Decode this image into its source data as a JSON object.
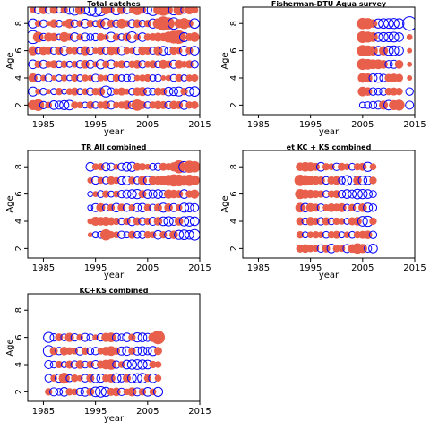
{
  "colors": {
    "positive": "#E8604C",
    "negative": "#0000FF",
    "frame": "#000000"
  },
  "chart_data": [
    {
      "type": "scatter",
      "title": "Total catches",
      "xlabel": "year",
      "ylabel": "Age",
      "xlim": [
        1982,
        2015
      ],
      "ylim": [
        1.3,
        9.2
      ],
      "xticks": [
        1985,
        1995,
        2005,
        2015
      ],
      "yticks": [
        2,
        4,
        6,
        8
      ],
      "ages": [
        2,
        3,
        4,
        5,
        6,
        7,
        8,
        9
      ],
      "year_range": [
        1983,
        2014
      ],
      "max_residual": 2.5,
      "residuals": {
        "9": [
          0.4,
          -0.6,
          0.8,
          -0.5,
          0.7,
          -0.4,
          0.6,
          -0.8,
          -1.2,
          1.0,
          -0.7,
          -1.4,
          -1.8,
          -1.5,
          0.9,
          0.5,
          -1.1,
          0.8,
          -0.6,
          0.4,
          1.2,
          0.6,
          -0.7,
          -1.4,
          1.0,
          1.5,
          0.8,
          -1.1,
          1.3,
          -0.5,
          0.9,
          0.6
        ],
        "8": [
          -0.9,
          0.5,
          -0.6,
          0.3,
          0.8,
          -0.5,
          0.4,
          1.0,
          -0.6,
          0.5,
          -0.8,
          0.6,
          -0.4,
          0.9,
          -1.1,
          0.7,
          -0.6,
          1.0,
          0.5,
          -0.7,
          0.8,
          -0.5,
          0.6,
          -0.9,
          1.2,
          2.2,
          1.6,
          -1.4,
          0.9,
          1.3,
          0.7,
          -1.0
        ],
        "7": [
          -1.8,
          1.2,
          -0.6,
          0.9,
          0.8,
          -0.4,
          1.1,
          0.6,
          -0.8,
          0.5,
          -0.7,
          -0.5,
          -0.6,
          0.7,
          0.4,
          -1.0,
          0.6,
          -0.5,
          0.8,
          -1.2,
          0.5,
          -0.8,
          0.6,
          0.7,
          0.9,
          0.8,
          1.3,
          1.8,
          2.0,
          -0.9,
          0.7,
          1.0
        ],
        "6": [
          0.9,
          -0.4,
          0.8,
          0.6,
          -0.5,
          0.7,
          -0.8,
          0.5,
          0.6,
          -0.4,
          0.9,
          -0.6,
          0.4,
          0.7,
          -0.5,
          0.8,
          0.6,
          -0.7,
          0.5,
          0.4,
          -0.6,
          0.8,
          0.7,
          -0.5,
          0.9,
          -0.8,
          -0.6,
          0.7,
          0.5,
          -0.9,
          0.6,
          -0.8
        ],
        "5": [
          -0.8,
          0.6,
          -0.7,
          0.5,
          0.7,
          -0.5,
          0.6,
          -0.4,
          0.5,
          -0.6,
          0.8,
          -0.7,
          0.4,
          -0.9,
          0.6,
          -0.8,
          0.5,
          0.7,
          -0.4,
          0.6,
          0.8,
          -0.6,
          0.5,
          0.7,
          -0.5,
          0.9,
          0.6,
          -0.7,
          0.8,
          0.5,
          0.7,
          -0.6
        ],
        "4": [
          0.9,
          -0.5,
          0.4,
          -0.6,
          0.3,
          -0.4,
          0.5,
          -0.3,
          0.6,
          -0.4,
          0.5,
          0.4,
          -0.6,
          0.5,
          0.4,
          -0.5,
          0.6,
          -0.4,
          -0.5,
          -0.6,
          0.4,
          0.5,
          0.6,
          -0.4,
          -0.5,
          0.3,
          0.4,
          -0.5,
          0.6,
          -0.4,
          0.5,
          0.6
        ],
        "3": [
          -0.9,
          0.4,
          -0.5,
          0.3,
          -0.4,
          0.6,
          -0.3,
          0.5,
          0.7,
          -0.4,
          0.5,
          -0.6,
          0.6,
          0.8,
          -1.3,
          -0.6,
          0.5,
          0.7,
          0.4,
          -0.5,
          0.8,
          0.9,
          -0.6,
          -0.5,
          0.7,
          0.6,
          -0.8,
          -0.7,
          -0.9,
          0.6,
          -0.8,
          -1.0
        ],
        "2": [
          1.1,
          1.5,
          -0.6,
          0.5,
          -0.8,
          -0.7,
          -0.9,
          -1.0,
          0.6,
          0.5,
          -0.4,
          0.7,
          -0.5,
          0.6,
          0.8,
          -0.7,
          0.5,
          0.6,
          0.9,
          -0.6,
          1.4,
          0.7,
          -0.5,
          0.6,
          0.8,
          0.7,
          -0.6,
          0.8,
          0.7,
          -0.8,
          0.6,
          0.7
        ]
      }
    },
    {
      "type": "scatter",
      "title": "Fisherman-DTU Aqua survey",
      "xlabel": "year",
      "ylabel": "Age",
      "xlim": [
        1982,
        2015
      ],
      "ylim": [
        1.3,
        9.2
      ],
      "xticks": [
        1985,
        1995,
        2005,
        2015
      ],
      "yticks": [
        2,
        4,
        6,
        8
      ],
      "ages": [
        2,
        3,
        4,
        5,
        6,
        7,
        8
      ],
      "year_range": [
        2005,
        2014
      ],
      "missing_years": [
        2013
      ],
      "max_residual": 2.5,
      "residuals": {
        "8": [
          1.4,
          1.3,
          0.8,
          -0.9,
          -1.0,
          -1.0,
          -1.1,
          -1.0,
          0.0,
          -2.0
        ],
        "7": [
          1.5,
          1.3,
          1.0,
          -0.8,
          -0.9,
          -0.9,
          -1.0,
          -0.8,
          0.0,
          0.4
        ],
        "6": [
          1.4,
          1.2,
          1.0,
          -0.8,
          0.9,
          -0.9,
          -1.0,
          -0.8,
          0.0,
          0.3
        ],
        "5": [
          1.4,
          1.2,
          1.0,
          1.0,
          0.8,
          -0.6,
          -0.7,
          0.8,
          0.0,
          0.3
        ],
        "4": [
          1.0,
          0.9,
          -0.7,
          -0.8,
          -0.6,
          0.7,
          0.8,
          0.7,
          0.0,
          0.3
        ],
        "3": [
          1.0,
          0.8,
          -0.6,
          -0.5,
          -0.6,
          0.6,
          0.7,
          0.6,
          0.0,
          -0.6
        ],
        "2": [
          -0.4,
          -0.5,
          -0.6,
          -0.7,
          0.9,
          -1.0,
          1.1,
          1.3,
          0.0,
          -0.7
        ]
      }
    },
    {
      "type": "scatter",
      "title": "TR All combined",
      "xlabel": "year",
      "ylabel": "Age",
      "xlim": [
        1982,
        2015
      ],
      "ylim": [
        1.3,
        9.2
      ],
      "xticks": [
        1985,
        1995,
        2005,
        2015
      ],
      "yticks": [
        2,
        4,
        6,
        8
      ],
      "ages": [
        3,
        4,
        5,
        6,
        7,
        8
      ],
      "year_range": [
        1994,
        2014
      ],
      "max_residual": 2.5,
      "residuals": {
        "8": [
          -0.8,
          0.5,
          0.6,
          -0.7,
          -0.6,
          0.4,
          -0.6,
          -0.8,
          -0.9,
          0.7,
          0.6,
          0.4,
          -0.5,
          -0.6,
          0.7,
          0.6,
          0.9,
          1.8,
          -1.2,
          1.6,
          1.4
        ],
        "7": [
          0.4,
          -0.6,
          0.5,
          -0.5,
          0.7,
          0.5,
          -0.6,
          -0.8,
          0.6,
          -0.5,
          0.9,
          -0.7,
          0.8,
          0.8,
          1.0,
          1.3,
          1.6,
          1.5,
          1.2,
          1.4,
          1.1
        ],
        "6": [
          -0.3,
          0.4,
          -0.5,
          0.6,
          -0.4,
          0.5,
          -0.6,
          -0.7,
          -0.8,
          -0.9,
          0.7,
          -0.8,
          -0.7,
          -0.8,
          -0.6,
          0.9,
          0.8,
          0.7,
          -0.8,
          0.6,
          0.9
        ],
        "5": [
          -0.3,
          -0.7,
          0.9,
          -0.5,
          0.6,
          -0.8,
          0.7,
          -0.6,
          0.5,
          -0.7,
          -0.8,
          0.6,
          -0.5,
          0.7,
          -0.9,
          0.8,
          -0.7,
          0.5,
          -0.9,
          -0.8,
          -0.7
        ],
        "4": [
          0.4,
          0.9,
          0.8,
          0.9,
          0.7,
          0.6,
          -0.5,
          0.6,
          -0.8,
          0.7,
          -0.6,
          0.6,
          -0.7,
          0.8,
          -0.8,
          -0.9,
          -0.7,
          0.8,
          -0.9,
          -1.0,
          -0.8
        ],
        "3": [
          0.3,
          -0.4,
          -0.5,
          1.4,
          0.6,
          0.5,
          -0.6,
          -0.4,
          0.7,
          -0.5,
          -0.6,
          0.6,
          0.5,
          -0.8,
          0.6,
          -0.7,
          0.8,
          -0.9,
          -1.0,
          -0.8,
          -1.2
        ]
      }
    },
    {
      "type": "scatter",
      "title": "et KC + KS combined",
      "xlabel": "year",
      "ylabel": "Age",
      "xlim": [
        1982,
        2015
      ],
      "ylim": [
        1.3,
        9.2
      ],
      "xticks": [
        1985,
        1995,
        2005,
        2015
      ],
      "yticks": [
        2,
        4,
        6,
        8
      ],
      "ages": [
        2,
        3,
        4,
        5,
        6,
        7,
        8
      ],
      "year_range": [
        1993,
        2007
      ],
      "max_residual": 2.5,
      "residuals": {
        "8": [
          0.8,
          1.0,
          0.9,
          0.7,
          -0.8,
          0.6,
          0.5,
          -0.6,
          0.7,
          0.5,
          -0.5,
          0.6,
          0.7,
          -0.9,
          0.5
        ],
        "7": [
          1.4,
          1.2,
          0.9,
          0.8,
          0.7,
          -0.6,
          0.7,
          0.8,
          -0.5,
          -1.0,
          -0.9,
          0.8,
          -0.8,
          -0.7,
          0.6
        ],
        "6": [
          1.1,
          0.9,
          0.8,
          0.7,
          0.6,
          -0.5,
          0.6,
          0.7,
          -0.6,
          -0.8,
          -0.7,
          -1.0,
          -0.9,
          -0.8,
          -0.5
        ],
        "5": [
          1.0,
          -0.8,
          0.9,
          0.7,
          -0.6,
          0.5,
          0.8,
          0.7,
          0.9,
          -0.5,
          0.6,
          -0.7,
          0.8,
          -0.9,
          -0.6
        ],
        "4": [
          0.7,
          -0.5,
          0.8,
          0.6,
          -0.6,
          0.7,
          -0.5,
          0.6,
          0.5,
          -0.4,
          0.7,
          0.8,
          -1.0,
          -1.1,
          0.6
        ],
        "3": [
          0.6,
          -0.4,
          0.5,
          0.6,
          0.5,
          -0.5,
          0.6,
          0.7,
          -0.4,
          0.5,
          -0.5,
          0.6,
          0.7,
          0.8,
          -0.6
        ],
        "2": [
          0.7,
          0.8,
          0.6,
          0.5,
          -0.6,
          0.7,
          -0.8,
          0.6,
          0.5,
          -0.7,
          0.8,
          1.2,
          0.9,
          -0.6,
          -0.8
        ]
      }
    },
    {
      "type": "scatter",
      "title": "KC+KS combined",
      "xlabel": "year",
      "ylabel": "Age",
      "xlim": [
        1982,
        2015
      ],
      "ylim": [
        1.3,
        9.2
      ],
      "xticks": [
        1985,
        1995,
        2005,
        2015
      ],
      "yticks": [
        2,
        4,
        6,
        8
      ],
      "ages": [
        2,
        3,
        4,
        5,
        6
      ],
      "year_range": [
        1986,
        2007
      ],
      "max_residual": 2.5,
      "residuals": {
        "6": [
          -1.1,
          -0.6,
          0.7,
          -0.5,
          0.9,
          -0.6,
          0.5,
          -0.7,
          -0.5,
          0.4,
          -0.6,
          0.9,
          1.0,
          -0.7,
          -0.5,
          -0.8,
          0.6,
          -0.9,
          -0.8,
          -0.7,
          0.9,
          2.0
        ],
        "5": [
          -1.2,
          0.7,
          -0.6,
          0.8,
          0.6,
          0.5,
          -0.7,
          0.6,
          -0.5,
          -0.6,
          0.5,
          0.8,
          1.0,
          0.6,
          -0.7,
          -0.8,
          0.6,
          -0.7,
          -0.8,
          -0.6,
          -0.9,
          0.7
        ],
        "4": [
          -0.7,
          -0.5,
          0.6,
          -0.4,
          0.7,
          -0.6,
          0.8,
          -0.5,
          0.6,
          -0.7,
          0.7,
          1.0,
          1.2,
          -0.6,
          0.5,
          -0.8,
          -0.9,
          -1.0,
          -0.9,
          -0.8,
          0.6,
          0.5
        ],
        "3": [
          -0.6,
          0.5,
          -0.7,
          1.3,
          -0.5,
          0.6,
          0.4,
          -0.6,
          0.7,
          -0.8,
          -0.7,
          0.6,
          0.8,
          -0.9,
          -0.6,
          0.7,
          -0.8,
          -0.9,
          -1.0,
          0.6,
          -0.8,
          0.5
        ],
        "2": [
          0.6,
          -0.7,
          -0.5,
          -0.8,
          0.6,
          0.5,
          -0.6,
          -0.8,
          0.7,
          -1.0,
          -1.2,
          -0.9,
          0.7,
          0.8,
          -0.6,
          0.5,
          0.9,
          -0.7,
          0.6,
          -0.8,
          0.5,
          -0.9
        ]
      }
    }
  ]
}
